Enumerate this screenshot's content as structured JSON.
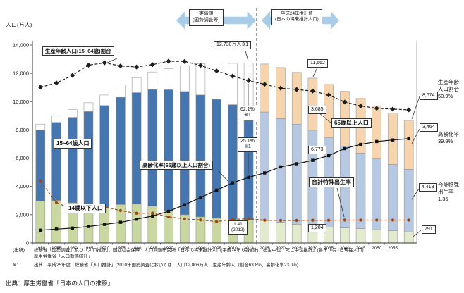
{
  "footer": "出典：厚生労働省「日本の人口の推移」",
  "sources": {
    "line1_prefix": "(出所)",
    "line1": "総務省「国勢調査」及び「人口推計」、国立社会保障・人口問題研究所「日本の将来推計人口(平成24年1月推計)：出生中位・死亡中位推計」(各年10月1日現在人口)",
    "line2": "厚生労働省「人口動態統計」",
    "note_prefix": "※1",
    "note": "出典：平成25年度　総務省「人口推計」(2010年国勢調査においては、人口12,806万人、生産年齢人口割合63.8%、高齢化率23.0%)"
  },
  "chart_data": {
    "type": "combo-stacked-bar-line",
    "title": "",
    "ylabel": "人口(万人)",
    "ylim": [
      0,
      14000
    ],
    "ytick_labels": [
      "0",
      "2,000",
      "4,000",
      "6,000",
      "8,000",
      "10,000",
      "12,000",
      "14,000"
    ],
    "categories": [
      "1950",
      "1955",
      "1960",
      "1965",
      "1970",
      "1975",
      "1980",
      "1985",
      "1990",
      "1995",
      "2000",
      "2005",
      "2010",
      "2013",
      "2015",
      "2020",
      "2025",
      "2030",
      "2035",
      "2040",
      "2045",
      "2050",
      "2055",
      "2060"
    ],
    "tick_labels": [
      "1950",
      "1955",
      "1960",
      "1965",
      "1970",
      "1975",
      "1980",
      "1985",
      "1990",
      "1995",
      "2000",
      "2005",
      "2010",
      "2013",
      "2015",
      "2020",
      "2025",
      "2030",
      "2035",
      "2040",
      "2045",
      "2050",
      "2055",
      ""
    ],
    "projection_start_index": 14,
    "separator_after_index": 13,
    "sections": {
      "actual": {
        "line1": "実績値",
        "line2": "(国勢調査等)"
      },
      "projection": {
        "line1": "平成24年推計値",
        "line2": "(日本の将来推計人口)"
      }
    },
    "bar_series": [
      {
        "name": "14歳以下人口",
        "color_actual": "#c9d7a0",
        "color_projection": "#e2ebcd",
        "values": [
          2979,
          3012,
          2843,
          2553,
          2515,
          2722,
          2751,
          2603,
          2249,
          2001,
          1847,
          1752,
          1680,
          1639,
          1583,
          1457,
          1324,
          1204,
          1129,
          1073,
          1012,
          939,
          861,
          791
        ]
      },
      {
        "name": "15~64歳人口",
        "color_actual": "#4576b0",
        "color_projection": "#b7c9e2",
        "values": [
          5017,
          5517,
          6047,
          6744,
          7212,
          7581,
          7883,
          8251,
          8590,
          8716,
          8622,
          8409,
          8103,
          7901,
          7682,
          7341,
          7085,
          6773,
          6343,
          5787,
          5353,
          5001,
          4706,
          4418
        ]
      },
      {
        "name": "65歳以上人口",
        "color_actual": "#ffffff",
        "color_projection": "#f6d5ae",
        "values": [
          416,
          479,
          540,
          624,
          739,
          887,
          1065,
          1247,
          1489,
          1826,
          2201,
          2567,
          2925,
          3190,
          3395,
          3612,
          3657,
          3685,
          3741,
          3868,
          3856,
          3768,
          3626,
          3464
        ]
      }
    ],
    "line_series": [
      {
        "name": "生産年齢人口(15~64歳)割合",
        "unit": "%",
        "style": "dashed-diamond",
        "color": "#1f1f1f",
        "plot_scale": 185,
        "values": [
          59.6,
          61.2,
          64.1,
          68.0,
          68.9,
          67.7,
          67.3,
          68.2,
          69.5,
          69.4,
          67.9,
          65.8,
          63.8,
          62.1,
          60.7,
          59.2,
          58.7,
          58.1,
          56.6,
          53.9,
          52.4,
          51.5,
          51.2,
          50.9
        ]
      },
      {
        "name": "高齢化率(65歳以上人口割合)",
        "unit": "%",
        "style": "solid-square",
        "color": "#111111",
        "plot_scale": 185,
        "values": [
          4.9,
          5.3,
          5.7,
          6.3,
          7.1,
          7.9,
          9.1,
          10.3,
          12.1,
          14.6,
          17.4,
          20.2,
          23.0,
          25.1,
          26.8,
          29.1,
          30.3,
          31.6,
          33.4,
          36.1,
          37.7,
          38.8,
          39.4,
          39.9
        ]
      },
      {
        "name": "合計特殊出生率",
        "unit": "",
        "style": "dashed-circle",
        "color": "#9c4a1a",
        "plot_scale": 1200,
        "values": [
          3.65,
          2.37,
          2.0,
          2.14,
          2.13,
          1.91,
          1.75,
          1.76,
          1.54,
          1.42,
          1.36,
          1.26,
          1.39,
          1.43,
          1.34,
          1.33,
          1.33,
          1.34,
          1.34,
          1.35,
          1.35,
          1.35,
          1.35,
          1.35
        ]
      }
    ],
    "annotations": {
      "peak_2013": "12,730万人※1",
      "working_share_2013": "62.1%",
      "working_share_2013_note": "※1",
      "aging_2013": "25.1%",
      "aging_2013_note": "※1",
      "tfr_2012_value": "1.41",
      "tfr_2012_note": "(2012)",
      "series_boxes": {
        "working_share": "生産年齢人口(15~64歳)割合",
        "working_pop": "15~64歳人口",
        "under14_pop": "14歳以下人口",
        "aging_rate": "高齢化率(65歳以上人口割合)",
        "senior_pop": "65歳以上人口",
        "tfr": "合計特殊出生率"
      },
      "y2030": {
        "total": "11,662",
        "senior": "3,685",
        "working": "6,773",
        "under14": "1,204"
      },
      "y2060": {
        "total": "8,674",
        "senior": "3,464",
        "working": "4,418",
        "under14": "791"
      },
      "right_margin": [
        {
          "label": "生産年齢人口割合",
          "value": "50.9%"
        },
        {
          "label": "高齢化率",
          "value": "39.9%"
        },
        {
          "label": "合計特殊出生率",
          "value": "1.35"
        }
      ]
    }
  }
}
